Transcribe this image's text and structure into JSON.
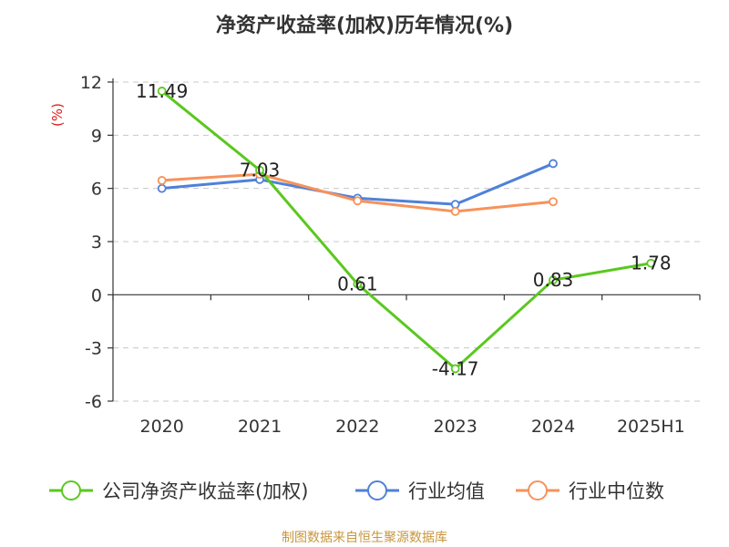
{
  "chart_data": {
    "type": "line",
    "title": "净资产收益率(加权)历年情况(%)",
    "ylabel": "(%)",
    "xlabel": "",
    "categories": [
      "2020",
      "2021",
      "2022",
      "2023",
      "2024",
      "2025H1"
    ],
    "ylim": [
      -6,
      12
    ],
    "yticks": [
      12,
      9,
      6,
      3,
      0,
      -3,
      -6
    ],
    "grid": true,
    "legend_position": "bottom",
    "series": [
      {
        "name": "公司净资产收益率(加权)",
        "color": "#5ac81e",
        "values": [
          11.49,
          7.03,
          0.61,
          -4.17,
          0.83,
          1.78
        ],
        "labels": [
          "11.49",
          "7.03",
          "0.61",
          "-4.17",
          "0.83",
          "1.78"
        ]
      },
      {
        "name": "行业均值",
        "color": "#4f81d9",
        "values": [
          6.0,
          6.5,
          5.45,
          5.1,
          7.4,
          null
        ]
      },
      {
        "name": "行业中位数",
        "color": "#f7925a",
        "values": [
          6.45,
          6.8,
          5.3,
          4.7,
          5.25,
          null
        ]
      }
    ]
  },
  "source": "制图数据来自恒生聚源数据库"
}
